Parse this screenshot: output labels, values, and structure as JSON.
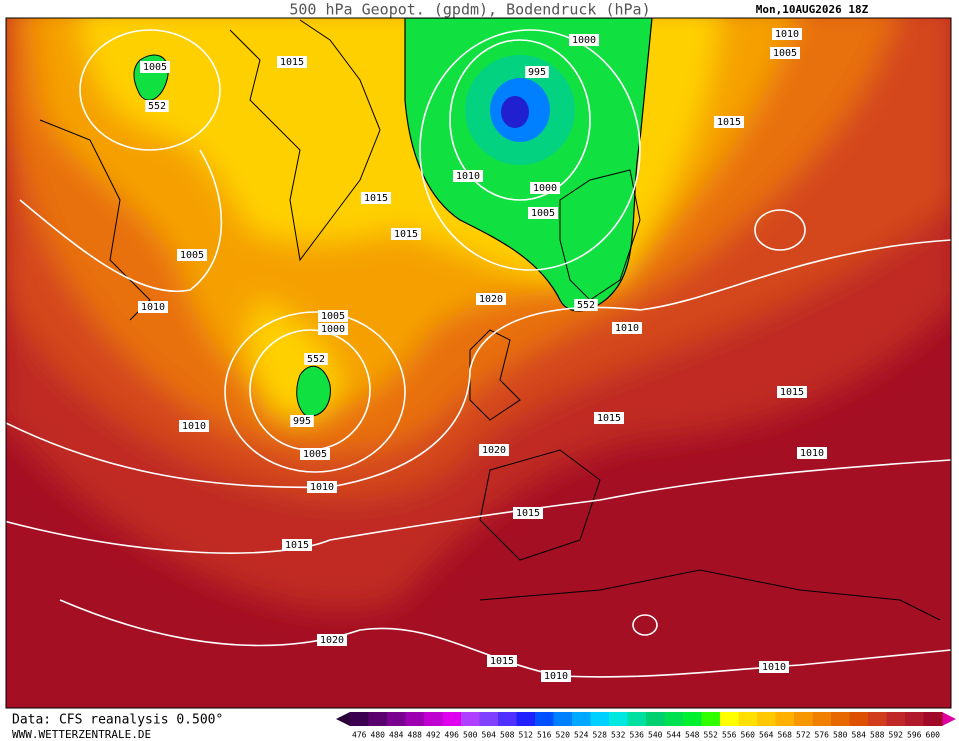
{
  "header": {
    "title": "500 hPa Geopot. (gpdm), Bodendruck (hPa)",
    "date": "Mon,10AUG2026 18Z"
  },
  "contour_labels": [
    1015,
    1005,
    552,
    1000,
    995,
    1010,
    1005,
    1015,
    1010,
    1000,
    1005,
    1015,
    1015,
    1005,
    1020,
    552,
    1010,
    1010,
    1005,
    1000,
    552,
    995,
    1010,
    1005,
    1020,
    1015,
    1015,
    1010,
    1010,
    1015,
    1015,
    1020,
    1015,
    1010,
    1010
  ],
  "footer": {
    "source": "Data: CFS reanalysis 0.500°",
    "website": "WWW.WETTERZENTRALE.DE"
  },
  "colorbar": {
    "labels": [
      476,
      480,
      484,
      488,
      492,
      496,
      500,
      504,
      508,
      512,
      516,
      520,
      524,
      528,
      532,
      536,
      540,
      544,
      548,
      552,
      556,
      560,
      564,
      568,
      572,
      576,
      580,
      584,
      588,
      592,
      596,
      600
    ],
    "colors": [
      "#3c0050",
      "#5a006e",
      "#7a0090",
      "#9c00b0",
      "#c000d0",
      "#e000f0",
      "#b040ff",
      "#8040ff",
      "#5030ff",
      "#2020ff",
      "#0050ff",
      "#0080ff",
      "#00a8ff",
      "#00d0ff",
      "#00e8e0",
      "#00e0a0",
      "#00d070",
      "#00e050",
      "#00f030",
      "#30ff00",
      "#ffff00",
      "#ffe000",
      "#ffc800",
      "#ffb000",
      "#f89800",
      "#f08000",
      "#e86800",
      "#dc5000",
      "#d03c1c",
      "#c02828",
      "#b01a2a",
      "#a00a28"
    ]
  }
}
